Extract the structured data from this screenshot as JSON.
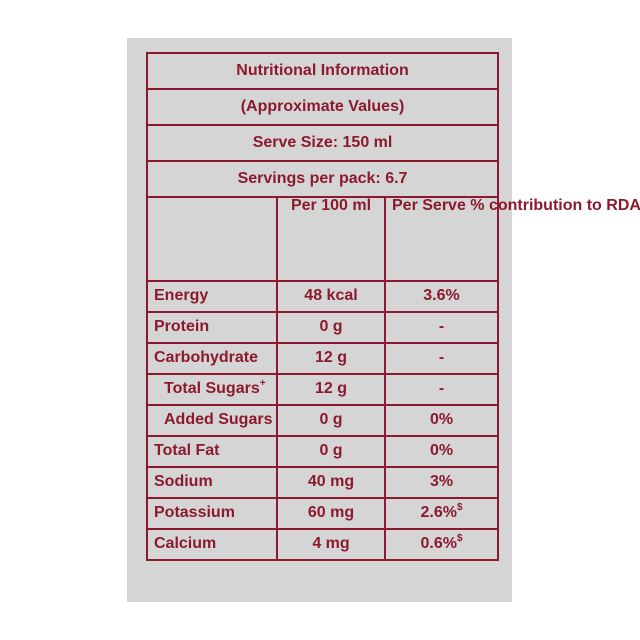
{
  "header": {
    "title": "Nutritional Information",
    "subtitle": "(Approximate Values)",
    "serve_size": "Serve Size: 150 ml",
    "servings": "Servings per pack: 6.7"
  },
  "columns": {
    "nutrient": "",
    "per_100ml": "Per 100 ml",
    "per_serve": "Per Serve % contribution to RDA"
  },
  "rows": [
    {
      "name": "Energy",
      "per_100ml": "48 kcal",
      "rda": "3.6%",
      "mark": ""
    },
    {
      "name": "Protein",
      "per_100ml": "0 g",
      "rda": "-",
      "mark": ""
    },
    {
      "name": "Carbohydrate",
      "per_100ml": "12 g",
      "rda": "-",
      "mark": ""
    },
    {
      "name": "Total Sugars",
      "name_mark": "+",
      "per_100ml": "12 g",
      "rda": "-",
      "mark": ""
    },
    {
      "name": "Added Sugars",
      "per_100ml": "0 g",
      "rda": "0%",
      "mark": ""
    },
    {
      "name": "Total Fat",
      "per_100ml": "0 g",
      "rda": "0%",
      "mark": ""
    },
    {
      "name": "Sodium",
      "per_100ml": "40 mg",
      "rda": "3%",
      "mark": ""
    },
    {
      "name": "Potassium",
      "per_100ml": "60 mg",
      "rda": "2.6%",
      "mark": "$"
    },
    {
      "name": "Calcium",
      "per_100ml": "4 mg",
      "rda": "0.6%",
      "mark": "$"
    }
  ],
  "colors": {
    "text": "#8c1a2e",
    "panel": "#d5d5d5"
  }
}
